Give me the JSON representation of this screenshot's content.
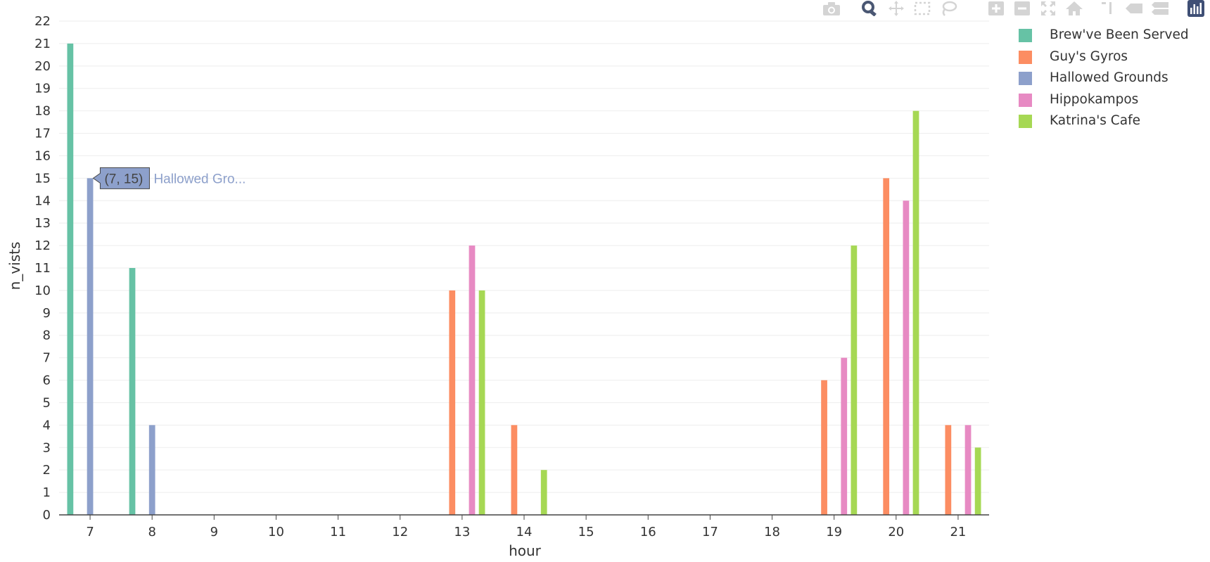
{
  "chart_data": {
    "type": "bar",
    "barmode": "group",
    "xlabel": "hour",
    "ylabel": "n_vists",
    "x_ticks": [
      "7",
      "8",
      "9",
      "10",
      "11",
      "12",
      "13",
      "14",
      "15",
      "16",
      "17",
      "18",
      "19",
      "20",
      "21"
    ],
    "y_ticks": [
      "0",
      "1",
      "2",
      "3",
      "4",
      "5",
      "6",
      "7",
      "8",
      "9",
      "10",
      "11",
      "12",
      "13",
      "14",
      "15",
      "16",
      "17",
      "18",
      "19",
      "20",
      "21",
      "22"
    ],
    "xlim": [
      6.5,
      21.5
    ],
    "ylim": [
      0,
      22
    ],
    "grid": true,
    "legend_position": "top-right",
    "series": [
      {
        "name": "Brew've Been Served",
        "color": "#66c2a5",
        "x": [
          7,
          8
        ],
        "y": [
          21,
          11
        ]
      },
      {
        "name": "Guy's Gyros",
        "color": "#fc8d62",
        "x": [
          13,
          14,
          19,
          20,
          21
        ],
        "y": [
          10,
          4,
          6,
          15,
          4
        ]
      },
      {
        "name": "Hallowed Grounds",
        "color": "#8da0cb",
        "x": [
          7,
          8
        ],
        "y": [
          15,
          4
        ]
      },
      {
        "name": "Hippokampos",
        "color": "#e78ac3",
        "x": [
          13,
          19,
          20,
          21
        ],
        "y": [
          12,
          7,
          14,
          4
        ]
      },
      {
        "name": "Katrina's Cafe",
        "color": "#a6d854",
        "x": [
          13,
          14,
          19,
          20,
          21
        ],
        "y": [
          10,
          2,
          12,
          18,
          3
        ]
      }
    ],
    "hover_label": {
      "series_index": 2,
      "x": 7,
      "y": 15,
      "text": "(7, 15)",
      "series_text": "Hallowed Gro..."
    }
  },
  "modebar": {
    "buttons": [
      "camera-icon",
      "zoom-icon",
      "pan-icon",
      "box-select-icon",
      "lasso-icon",
      "zoom-in-icon",
      "zoom-out-icon",
      "autoscale-icon",
      "reset-axes-icon",
      "spike-lines-icon",
      "hover-closest-icon",
      "hover-compare-icon",
      "plotly-logo-icon"
    ]
  }
}
